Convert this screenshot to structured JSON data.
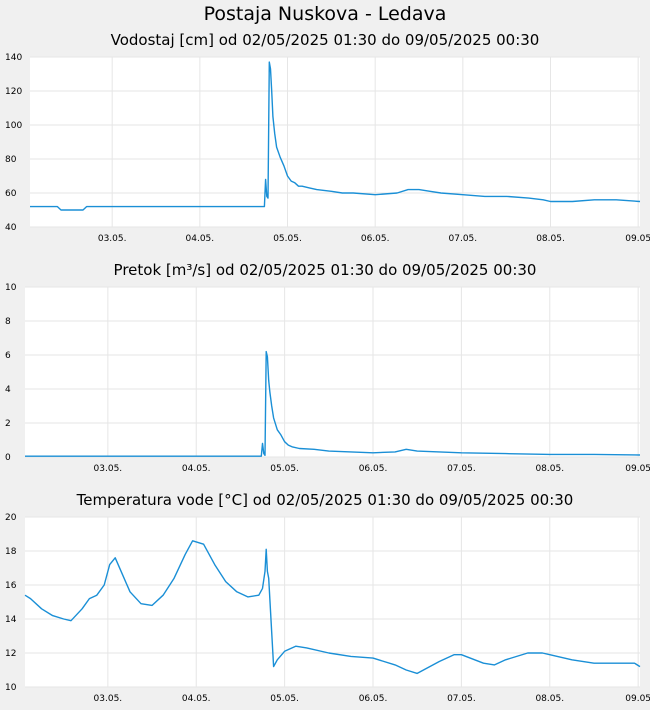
{
  "page_title": "Postaja Nuskova - Ledava",
  "colors": {
    "line": "#1a8fd6",
    "grid": "#e6e6e6",
    "background": "#f0f0f0",
    "plot_bg": "#ffffff"
  },
  "chart_data": [
    {
      "type": "line",
      "title": "Vodostaj [cm] od 02/05/2025 01:30 do 09/05/2025 00:30",
      "xlabel": "",
      "ylabel": "",
      "x_ticks": [
        "03.05.",
        "04.05.",
        "05.05.",
        "06.05.",
        "07.05.",
        "08.05.",
        "09.05"
      ],
      "y_ticks": [
        "40",
        "60",
        "80",
        "100",
        "120",
        "140"
      ],
      "xlim": [
        "02/05/2025 01:30",
        "09/05/2025 00:30"
      ],
      "ylim": [
        40,
        140
      ],
      "grid": true,
      "series": [
        {
          "x": [
            "02.05. 01:30",
            "02.05. 06:00",
            "02.05. 09:00",
            "02.05. 10:00",
            "02.05. 16:00",
            "02.05. 17:00",
            "03.05. 00:00",
            "03.05. 12:00",
            "04.05. 00:00",
            "04.05. 12:00",
            "04.05. 17:00",
            "04.05. 17:40",
            "04.05. 18:00",
            "04.05. 18:20",
            "04.05. 18:40",
            "04.05. 19:00",
            "04.05. 19:20",
            "04.05. 19:40",
            "04.05. 20:00",
            "04.05. 20:30",
            "04.05. 21:00",
            "04.05. 22:00",
            "04.05. 23:00",
            "05.05. 00:00",
            "05.05. 01:00",
            "05.05. 02:00",
            "05.05. 03:00",
            "05.05. 04:00",
            "05.05. 06:00",
            "05.05. 08:00",
            "05.05. 12:00",
            "05.05. 15:00",
            "05.05. 18:00",
            "06.05. 00:00",
            "06.05. 06:00",
            "06.05. 09:00",
            "06.05. 12:00",
            "06.05. 15:00",
            "06.05. 18:00",
            "07.05. 00:00",
            "07.05. 06:00",
            "07.05. 12:00",
            "07.05. 18:00",
            "07.05. 22:00",
            "08.05. 00:00",
            "08.05. 06:00",
            "08.05. 12:00",
            "08.05. 18:00",
            "09.05. 00:30"
          ],
          "y": [
            52,
            52,
            52,
            50,
            50,
            52,
            52,
            52,
            52,
            52,
            52,
            52,
            68,
            58,
            57,
            137,
            133,
            120,
            105,
            95,
            87,
            81,
            76,
            70,
            67,
            66,
            64,
            64,
            63,
            62,
            61,
            60,
            60,
            59,
            60,
            62,
            62,
            61,
            60,
            59,
            58,
            58,
            57,
            56,
            55,
            55,
            56,
            56,
            55
          ]
        }
      ]
    },
    {
      "type": "line",
      "title": "Pretok [m³/s] od 02/05/2025 01:30 do 09/05/2025 00:30",
      "xlabel": "",
      "ylabel": "",
      "x_ticks": [
        "03.05.",
        "04.05.",
        "05.05.",
        "06.05.",
        "07.05.",
        "08.05.",
        "09.05"
      ],
      "y_ticks": [
        "0",
        "2",
        "4",
        "6",
        "8",
        "10"
      ],
      "xlim": [
        "02/05/2025 01:30",
        "09/05/2025 00:30"
      ],
      "ylim": [
        0,
        10
      ],
      "grid": true,
      "series": [
        {
          "x": [
            "02.05. 01:30",
            "02.05. 12:00",
            "03.05. 00:00",
            "04.05. 00:00",
            "04.05. 17:40",
            "04.05. 18:00",
            "04.05. 18:20",
            "04.05. 18:40",
            "04.05. 19:00",
            "04.05. 19:20",
            "04.05. 19:40",
            "04.05. 20:00",
            "04.05. 20:30",
            "04.05. 21:00",
            "04.05. 22:00",
            "04.05. 23:00",
            "05.05. 00:00",
            "05.05. 01:00",
            "05.05. 02:00",
            "05.05. 04:00",
            "05.05. 08:00",
            "05.05. 12:00",
            "05.05. 18:00",
            "06.05. 00:00",
            "06.05. 06:00",
            "06.05. 09:00",
            "06.05. 12:00",
            "06.05. 18:00",
            "07.05. 00:00",
            "07.05. 12:00",
            "08.05. 00:00",
            "08.05. 12:00",
            "09.05. 00:30"
          ],
          "y": [
            0.05,
            0.05,
            0.05,
            0.05,
            0.05,
            0.8,
            0.2,
            0.1,
            6.2,
            5.9,
            4.5,
            3.8,
            3.0,
            2.3,
            1.6,
            1.3,
            0.9,
            0.7,
            0.6,
            0.5,
            0.45,
            0.35,
            0.3,
            0.25,
            0.3,
            0.45,
            0.35,
            0.3,
            0.25,
            0.2,
            0.15,
            0.15,
            0.12
          ]
        }
      ]
    },
    {
      "type": "line",
      "title": "Temperatura vode [°C] od 02/05/2025 01:30 do 09/05/2025 00:30",
      "xlabel": "",
      "ylabel": "",
      "x_ticks": [
        "03.05.",
        "04.05.",
        "05.05.",
        "06.05.",
        "07.05.",
        "08.05.",
        "09.05"
      ],
      "y_ticks": [
        "10",
        "12",
        "14",
        "16",
        "18",
        "20"
      ],
      "xlim": [
        "02/05/2025 01:30",
        "09/05/2025 00:30"
      ],
      "ylim": [
        10,
        20
      ],
      "grid": true,
      "series": [
        {
          "x": [
            "02.05. 01:30",
            "02.05. 03:00",
            "02.05. 06:00",
            "02.05. 09:00",
            "02.05. 12:00",
            "02.05. 14:00",
            "02.05. 17:00",
            "02.05. 19:00",
            "02.05. 21:00",
            "02.05. 23:00",
            "03.05. 00:30",
            "03.05. 02:00",
            "03.05. 04:00",
            "03.05. 06:00",
            "03.05. 09:00",
            "03.05. 12:00",
            "03.05. 15:00",
            "03.05. 18:00",
            "03.05. 21:00",
            "03.05. 23:00",
            "04.05. 02:00",
            "04.05. 05:00",
            "04.05. 08:00",
            "04.05. 11:00",
            "04.05. 14:00",
            "04.05. 17:00",
            "04.05. 18:00",
            "04.05. 18:40",
            "04.05. 19:00",
            "04.05. 19:20",
            "04.05. 19:40",
            "04.05. 21:00",
            "04.05. 22:00",
            "05.05. 00:00",
            "05.05. 03:00",
            "05.05. 06:00",
            "05.05. 12:00",
            "05.05. 18:00",
            "06.05. 00:00",
            "06.05. 06:00",
            "06.05. 09:00",
            "06.05. 12:00",
            "06.05. 18:00",
            "06.05. 22:00",
            "07.05. 00:00",
            "07.05. 06:00",
            "07.05. 09:00",
            "07.05. 12:00",
            "07.05. 18:00",
            "07.05. 22:00",
            "08.05. 00:00",
            "08.05. 06:00",
            "08.05. 12:00",
            "08.05. 18:00",
            "08.05. 23:00",
            "09.05. 00:30"
          ],
          "y": [
            15.4,
            15.2,
            14.6,
            14.2,
            14.0,
            13.9,
            14.6,
            15.2,
            15.4,
            16.0,
            17.2,
            17.6,
            16.6,
            15.6,
            14.9,
            14.8,
            15.4,
            16.4,
            17.8,
            18.6,
            18.4,
            17.2,
            16.2,
            15.6,
            15.3,
            15.4,
            15.8,
            16.8,
            18.1,
            16.8,
            16.4,
            11.2,
            11.6,
            12.1,
            12.4,
            12.3,
            12.0,
            11.8,
            11.7,
            11.3,
            11.0,
            10.8,
            11.5,
            11.9,
            11.9,
            11.4,
            11.3,
            11.6,
            12.0,
            12.0,
            11.9,
            11.6,
            11.4,
            11.4,
            11.4,
            11.2
          ]
        }
      ]
    }
  ]
}
